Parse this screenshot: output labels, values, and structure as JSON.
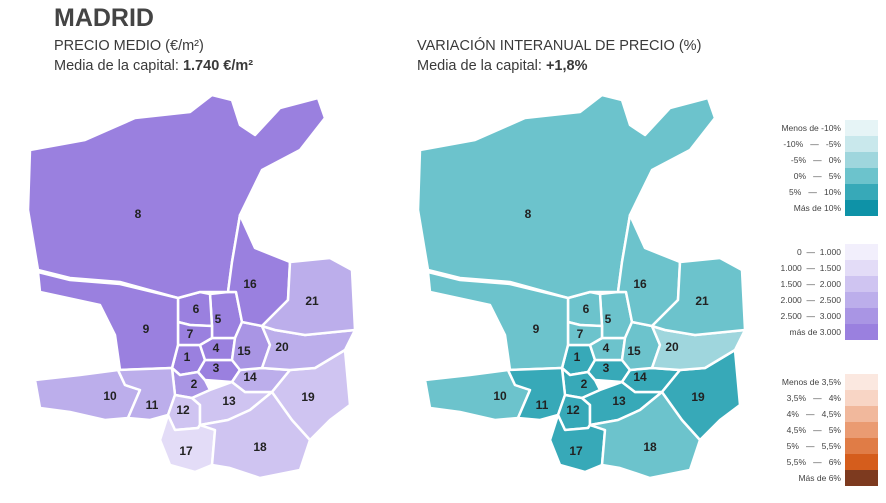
{
  "header": {
    "title": "MADRID"
  },
  "map_price": {
    "subtitle": "PRECIO MEDIO (€/m²)",
    "average_label": "Media de la capital: ",
    "average_value": "1.740 €/m²",
    "district_class": {
      "1": 5,
      "2": 4,
      "3": 5,
      "4": 5,
      "5": 5,
      "6": 5,
      "7": 5,
      "8": 5,
      "9": 5,
      "10": 3,
      "11": 3,
      "12": 2,
      "13": 2,
      "14": 3,
      "15": 4,
      "16": 5,
      "17": 1,
      "18": 2,
      "19": 2,
      "20": 3,
      "21": 3
    }
  },
  "map_variation": {
    "subtitle": "VARIACIÓN INTERANUAL DE PRECIO (%)",
    "average_label": "Media de la capital: ",
    "average_value": "+1,8%",
    "district_class": {
      "1": 4,
      "2": 4,
      "3": 4,
      "4": 3,
      "5": 3,
      "6": 3,
      "7": 3,
      "8": 3,
      "9": 3,
      "10": 3,
      "11": 4,
      "12": 4,
      "13": 4,
      "14": 4,
      "15": 3,
      "16": 3,
      "17": 4,
      "18": 3,
      "19": 4,
      "20": 2,
      "21": 3
    }
  },
  "legend_variation": {
    "items": [
      {
        "label": "Menos de -10%",
        "color": "#e6f4f6"
      },
      {
        "label": "-10%   —   -5%",
        "color": "#c9e8ec"
      },
      {
        "label": "-5%   —   0%",
        "color": "#9fd6dd"
      },
      {
        "label": "0%   —   5%",
        "color": "#6cc3cc"
      },
      {
        "label": "5%   —   10%",
        "color": "#37a9b8"
      },
      {
        "label": "Más de 10%",
        "color": "#0e92a7"
      }
    ]
  },
  "legend_price": {
    "items": [
      {
        "label": "0  —  1.000",
        "color": "#f2effc"
      },
      {
        "label": "1.000  —  1.500",
        "color": "#e3dcf7"
      },
      {
        "label": "1.500  —  2.000",
        "color": "#cfc4f1"
      },
      {
        "label": "2.000  —  2.500",
        "color": "#bcaeeb"
      },
      {
        "label": "2.500  —  3.000",
        "color": "#a995e4"
      },
      {
        "label": "más de 3.000",
        "color": "#9a80df"
      }
    ]
  },
  "legend_orange": {
    "items": [
      {
        "label": "Menos de 3,5%",
        "color": "#fbe8e0"
      },
      {
        "label": "3,5%   —   4%",
        "color": "#f8d5c5"
      },
      {
        "label": "4%   —   4,5%",
        "color": "#f1b89c"
      },
      {
        "label": "4,5%   —   5%",
        "color": "#ea9b72"
      },
      {
        "label": "5%   —   5,5%",
        "color": "#e07c46"
      },
      {
        "label": "5,5%   —   6%",
        "color": "#d55d1c"
      },
      {
        "label": "Más de 6%",
        "color": "#7d3a1f"
      }
    ]
  }
}
